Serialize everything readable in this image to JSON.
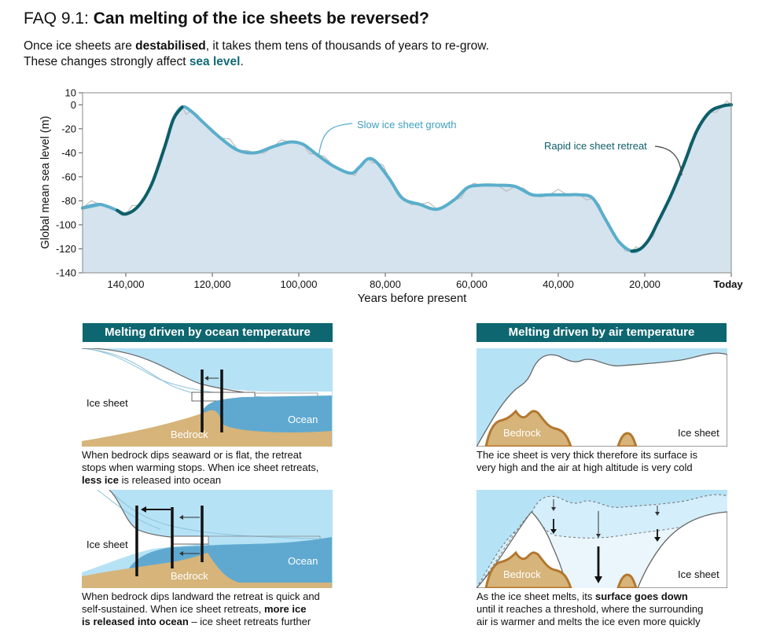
{
  "header": {
    "title_prefix": "FAQ 9.1: ",
    "title_main": "Can melting of the ice sheets be reversed?",
    "line1_a": "Once ice sheets are ",
    "line1_b": "destabilised",
    "line1_c": ", it takes them tens of thousands of years to re-grow.",
    "line2_a": "These changes strongly affect ",
    "line2_b": "sea level",
    "line2_c": "."
  },
  "chart_data": {
    "type": "line",
    "ylabel": "Global mean sea level (m)",
    "xlabel": "Years before present",
    "xlim": [
      150000,
      0
    ],
    "ylim": [
      -140,
      10
    ],
    "yticks": [
      "10",
      "0",
      "-20",
      "-40",
      "-60",
      "-80",
      "-100",
      "-120",
      "-140"
    ],
    "xticks": [
      "140,000",
      "120,000",
      "100,000",
      "80,000",
      "60,000",
      "40,000",
      "20,000",
      "Today"
    ],
    "x": [
      150000,
      146000,
      142000,
      140000,
      137000,
      134000,
      131000,
      129000,
      127000,
      125000,
      122000,
      118000,
      114000,
      110000,
      106000,
      102000,
      99000,
      96000,
      92000,
      88000,
      86000,
      84000,
      82000,
      79000,
      76000,
      72000,
      68000,
      64000,
      61000,
      58000,
      54000,
      50000,
      46000,
      42000,
      38000,
      35000,
      32000,
      29000,
      26000,
      23000,
      21000,
      19000,
      17000,
      14000,
      11000,
      8000,
      5000,
      2000,
      0
    ],
    "series": [
      {
        "name": "Slow ice sheet growth",
        "values": [
          -86,
          -83,
          -88,
          -91,
          -84,
          -66,
          -35,
          -12,
          -2,
          -5,
          -15,
          -28,
          -38,
          -40,
          -35,
          -31,
          -33,
          -41,
          -51,
          -57,
          -52,
          -45,
          -48,
          -62,
          -78,
          -83,
          -87,
          -79,
          -69,
          -67,
          -67,
          -68,
          -75,
          -75,
          -75,
          -75,
          -78,
          -96,
          -114,
          -122,
          -120,
          -112,
          -98,
          -76,
          -50,
          -22,
          -6,
          -1,
          0
        ]
      },
      {
        "name": "Rapid ice sheet retreat",
        "values": [
          -86,
          -83,
          -88,
          -91,
          -84,
          -66,
          -35,
          -12,
          -2,
          -5,
          -15,
          -28,
          -38,
          -40,
          -35,
          -31,
          -33,
          -41,
          -51,
          -57,
          -52,
          -45,
          -48,
          -62,
          -78,
          -83,
          -87,
          -79,
          -69,
          -67,
          -67,
          -68,
          -75,
          -75,
          -75,
          -75,
          -78,
          -96,
          -114,
          -122,
          -120,
          -112,
          -98,
          -76,
          -50,
          -22,
          -6,
          -1,
          0
        ]
      }
    ],
    "annotations": [
      "Slow ice sheet growth",
      "Rapid ice sheet retreat"
    ],
    "colors": {
      "growth": "#5aaecc",
      "retreat": "#0e5e69",
      "fill": "#d4e3ed",
      "noisy": "#bdbdbd"
    }
  },
  "panels": {
    "ocean": {
      "heading": "Melting driven by ocean temperature",
      "top": {
        "ice_label": "Ice sheet",
        "bedrock_label": "Bedrock",
        "ocean_label": "Ocean"
      },
      "top_caption_1": "When bedrock dips seaward or is flat, the retreat",
      "top_caption_2": "stops when warming stops. When ice sheet retreats,",
      "top_caption_3b": "less ice",
      "top_caption_3": " is released into ocean",
      "bottom": {
        "ice_label": "Ice sheet",
        "bedrock_label": "Bedrock",
        "ocean_label": "Ocean"
      },
      "bottom_caption_1": "When bedrock dips landward the retreat is quick and",
      "bottom_caption_2a": "self-sustained.  When ice sheet retreats, ",
      "bottom_caption_2b": "more ice",
      "bottom_caption_3b": "is released into ocean",
      "bottom_caption_3": " – ice sheet retreats further"
    },
    "air": {
      "heading": "Melting driven by air temperature",
      "top": {
        "ice_label": "Ice sheet",
        "bedrock_label": "Bedrock"
      },
      "top_caption_1": "The ice sheet is very thick therefore its surface is",
      "top_caption_2": "very high and the air at high altitude is very cold",
      "bottom": {
        "ice_label": "Ice sheet",
        "bedrock_label": "Bedrock"
      },
      "bottom_caption_1a": "As the ice sheet melts, its ",
      "bottom_caption_1b": "surface goes down",
      "bottom_caption_2": "until it reaches a threshold, where the surrounding",
      "bottom_caption_3": "air is warmer and melts the ice even more quickly"
    }
  }
}
